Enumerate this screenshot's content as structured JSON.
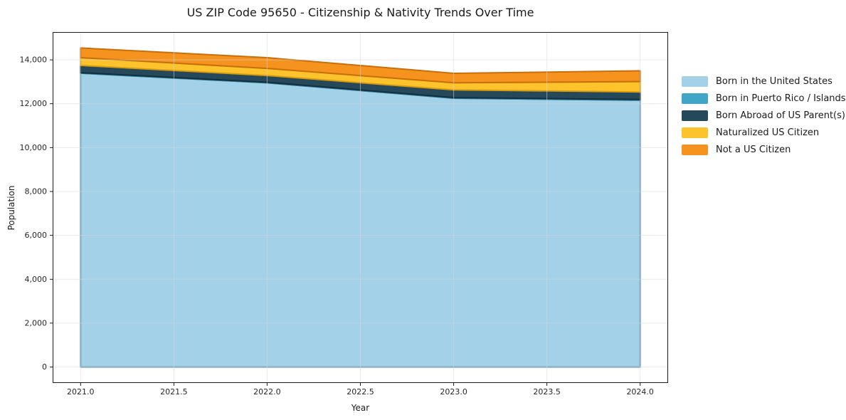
{
  "chart_data": {
    "type": "area",
    "stacked": true,
    "title": "US ZIP Code 95650 - Citizenship & Nativity Trends Over Time",
    "xlabel": "Year",
    "ylabel": "Population",
    "x": [
      2021,
      2022,
      2023,
      2024
    ],
    "series": [
      {
        "name": "Born in the United States",
        "color": "#A3D1E8",
        "edge": "#5E97B8",
        "values": [
          13390,
          12950,
          12250,
          12160
        ]
      },
      {
        "name": "Born in Puerto Rico / Islands",
        "color": "#41A5C5",
        "edge": "#2C7F9E",
        "values": [
          25,
          25,
          30,
          35
        ]
      },
      {
        "name": "Born Abroad of US Parent(s)",
        "color": "#25485A",
        "edge": "#152F3D",
        "values": [
          330,
          310,
          350,
          340
        ]
      },
      {
        "name": "Naturalized US Citizen",
        "color": "#FCC32D",
        "edge": "#D89C0F",
        "values": [
          355,
          325,
          325,
          475
        ]
      },
      {
        "name": "Not a US Citizen",
        "color": "#F6921E",
        "edge": "#C96F0A",
        "values": [
          440,
          490,
          430,
          490
        ]
      }
    ],
    "totals": [
      14540,
      14100,
      13385,
      13500
    ],
    "xlim": [
      2020.85,
      2024.15
    ],
    "ylim": [
      -727,
      15267
    ],
    "xticks": [
      2021.0,
      2021.5,
      2022.0,
      2022.5,
      2023.0,
      2023.5,
      2024.0
    ],
    "xtick_labels": [
      "2021.0",
      "2021.5",
      "2022.0",
      "2022.5",
      "2023.0",
      "2023.5",
      "2024.0"
    ],
    "yticks": [
      0,
      2000,
      4000,
      6000,
      8000,
      10000,
      12000,
      14000
    ],
    "ytick_labels": [
      "0",
      "2,000",
      "4,000",
      "6,000",
      "8,000",
      "10,000",
      "12,000",
      "14,000"
    ],
    "grid": true,
    "legend_position": "right",
    "axis_color": "#1a1a1a",
    "tick_label_color": "#262626",
    "grid_color": "#d9d9d9",
    "background_color": "#ffffff"
  }
}
